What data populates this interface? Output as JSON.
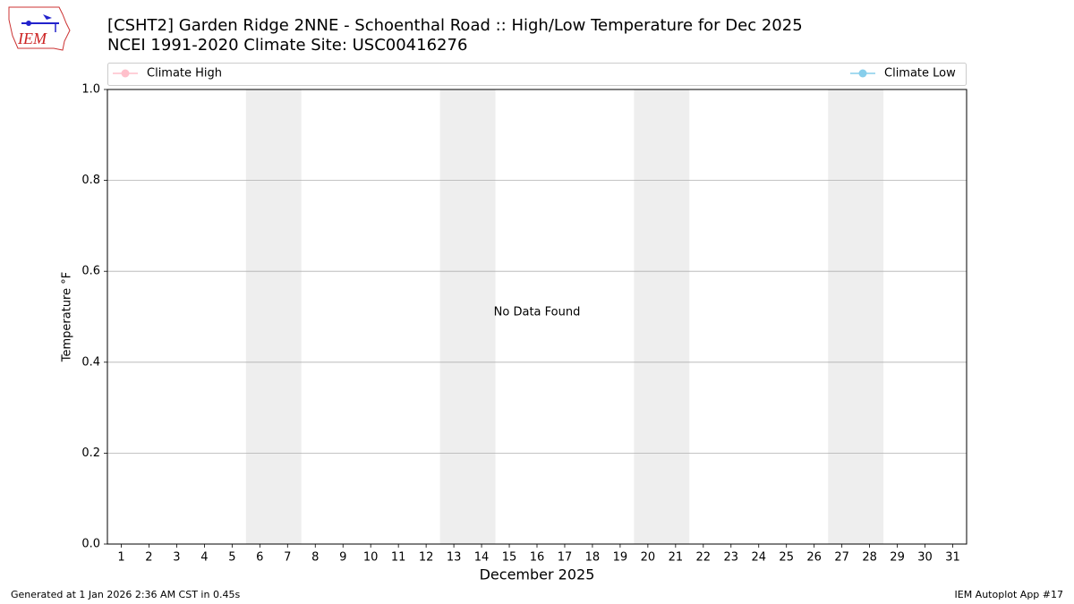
{
  "chart_data": {
    "type": "line",
    "logo": "IEM",
    "title": "[CSHT2] Garden Ridge 2NNE - Schoenthal Road :: High/Low Temperature for Dec 2025",
    "subtitle": "NCEI 1991-2020 Climate Site: USC00416276",
    "annotation": "No Data Found",
    "x_label": "December 2025",
    "y_label": "Temperature °F",
    "footer_left": "Generated at 1 Jan 2026 2:36 AM CST in 0.45s",
    "footer_right": "IEM Autoplot App #17",
    "x": [
      1,
      2,
      3,
      4,
      5,
      6,
      7,
      8,
      9,
      10,
      11,
      12,
      13,
      14,
      15,
      16,
      17,
      18,
      19,
      20,
      21,
      22,
      23,
      24,
      25,
      26,
      27,
      28,
      29,
      30,
      31
    ],
    "xlim": [
      0.5,
      31.5
    ],
    "xticks": [
      1,
      2,
      3,
      4,
      5,
      6,
      7,
      8,
      9,
      10,
      11,
      12,
      13,
      14,
      15,
      16,
      17,
      18,
      19,
      20,
      21,
      22,
      23,
      24,
      25,
      26,
      27,
      28,
      29,
      30,
      31
    ],
    "ylim": [
      0,
      1
    ],
    "yticks": [
      {
        "value": 0,
        "label": "0.0"
      },
      0.2,
      0.4,
      0.6,
      0.8,
      {
        "value": 1,
        "label": "1.0"
      }
    ],
    "grid": true,
    "series": [
      {
        "name": "Climate High",
        "color": "#ffc0cb",
        "values": [
          null,
          null,
          null,
          null,
          null,
          null,
          null,
          null,
          null,
          null,
          null,
          null,
          null,
          null,
          null,
          null,
          null,
          null,
          null,
          null,
          null,
          null,
          null,
          null,
          null,
          null,
          null,
          null,
          null,
          null,
          null
        ]
      },
      {
        "name": "Climate Low",
        "color": "#87ceeb",
        "values": [
          null,
          null,
          null,
          null,
          null,
          null,
          null,
          null,
          null,
          null,
          null,
          null,
          null,
          null,
          null,
          null,
          null,
          null,
          null,
          null,
          null,
          null,
          null,
          null,
          null,
          null,
          null,
          null,
          null,
          null,
          null
        ]
      }
    ]
  }
}
